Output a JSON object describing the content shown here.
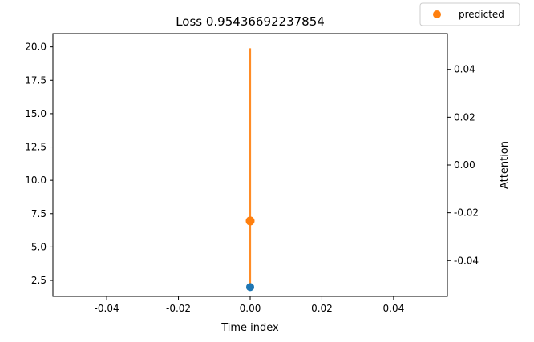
{
  "chart_data": {
    "type": "scatter",
    "title": "Loss 0.95436692237854",
    "xlabel": "Time index",
    "ylabel": "",
    "y2label": "Attention",
    "xlim": [
      -0.055,
      0.055
    ],
    "ylim": [
      1.3,
      21.0
    ],
    "y2lim": [
      -0.055,
      0.055
    ],
    "xticks": [
      "-0.04",
      "-0.02",
      "0.00",
      "0.02",
      "0.04"
    ],
    "xtick_values": [
      -0.04,
      -0.02,
      0.0,
      0.02,
      0.04
    ],
    "yticks": [
      "2.5",
      "5.0",
      "7.5",
      "10.0",
      "12.5",
      "15.0",
      "17.5",
      "20.0"
    ],
    "ytick_values": [
      2.5,
      5.0,
      7.5,
      10.0,
      12.5,
      15.0,
      17.5,
      20.0
    ],
    "y2ticks": [
      "-0.04",
      "-0.02",
      "0.00",
      "0.02",
      "0.04"
    ],
    "y2tick_values": [
      -0.04,
      -0.02,
      0.0,
      0.02,
      0.04
    ],
    "legend_position": "top-right",
    "series": [
      {
        "name": "",
        "color": "#1f77b4",
        "points": [
          {
            "x": 0.0,
            "y": 2.0
          }
        ]
      },
      {
        "name": "predicted",
        "color": "#ff7f0e",
        "points": [
          {
            "x": 0.0,
            "y": 6.95
          }
        ],
        "error_bar": {
          "x": 0.0,
          "y_low": 1.95,
          "y_high": 19.9
        }
      }
    ],
    "grid": false
  }
}
